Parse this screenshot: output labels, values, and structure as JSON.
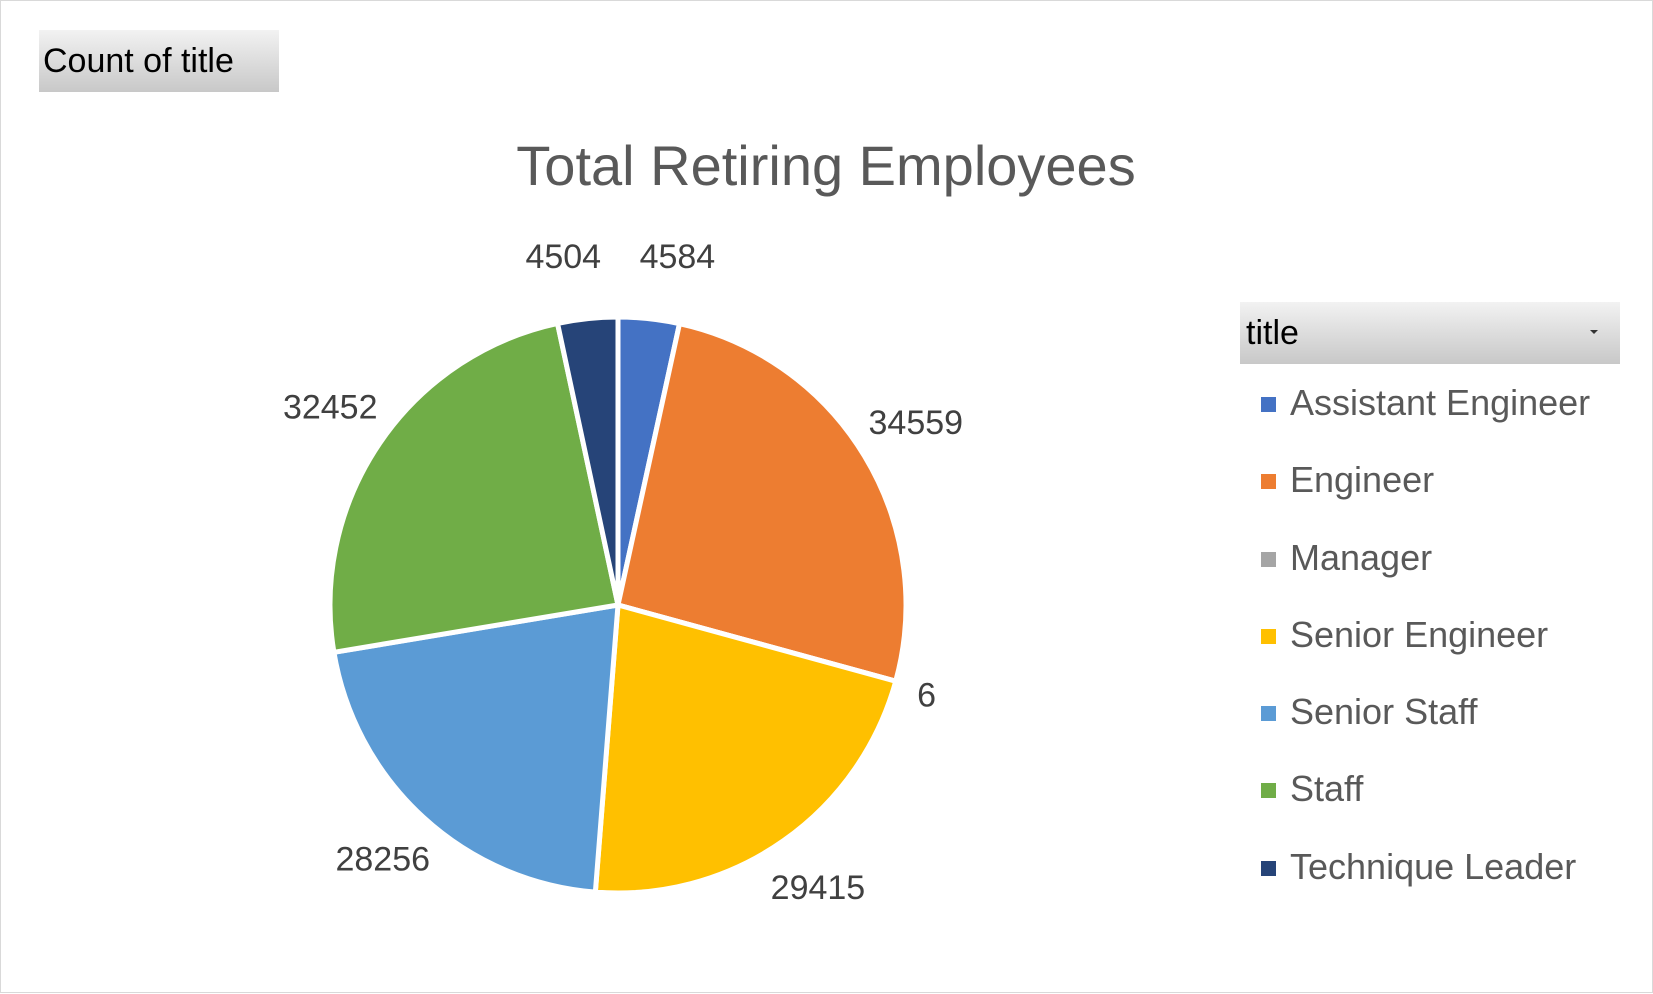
{
  "field_button": {
    "label": "Count of title"
  },
  "legend": {
    "header": "title",
    "dropdown_icon": "dropdown-arrow-icon"
  },
  "chart_data": {
    "type": "pie",
    "title": "Total Retiring Employees",
    "legend_position": "right",
    "slices": [
      {
        "label": "Assistant Engineer",
        "value": 4584,
        "display": "4584",
        "color": "#4472C4"
      },
      {
        "label": "Engineer",
        "value": 34559,
        "display": "34559",
        "color": "#ED7D31"
      },
      {
        "label": "Manager",
        "value": 6,
        "display": "6",
        "color": "#A5A5A5"
      },
      {
        "label": "Senior Engineer",
        "value": 29415,
        "display": "29415",
        "color": "#FFC000"
      },
      {
        "label": "Senior Staff",
        "value": 28256,
        "display": "28256",
        "color": "#5B9BD5"
      },
      {
        "label": "Staff",
        "value": 32452,
        "display": "32452",
        "color": "#70AD47"
      },
      {
        "label": "Technique Leader",
        "value": 4504,
        "display": "4504",
        "color": "#264478"
      }
    ]
  }
}
